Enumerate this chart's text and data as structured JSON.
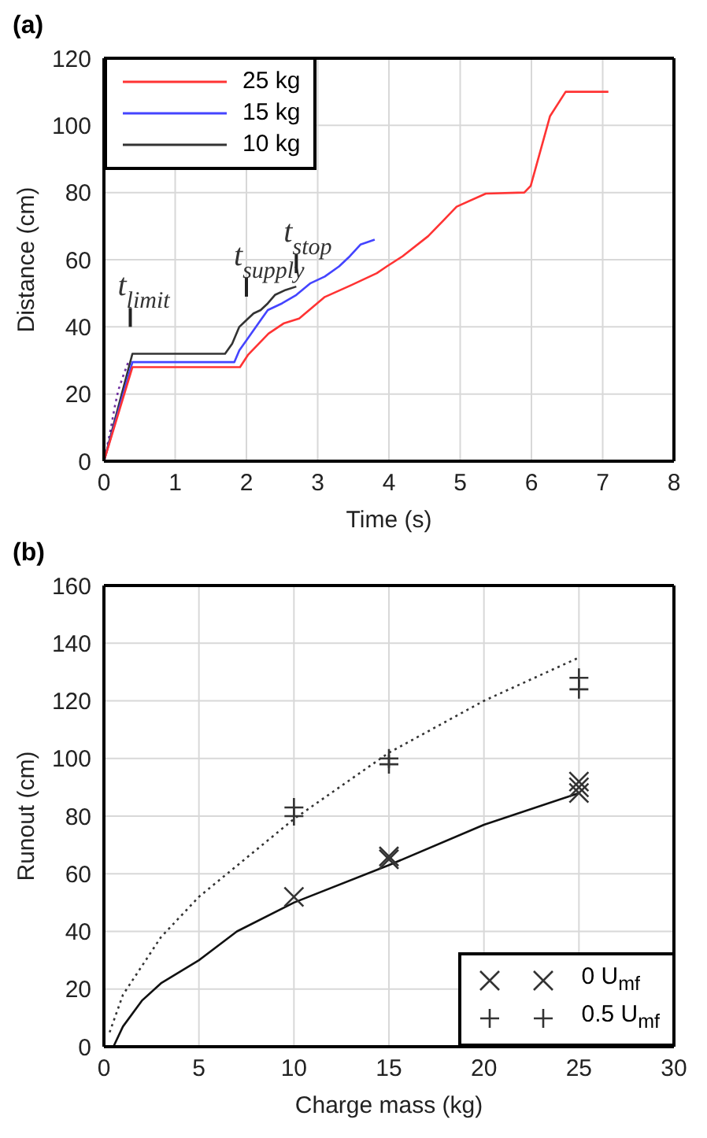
{
  "chart_data": [
    {
      "type": "line",
      "title": "(a)",
      "xlabel": "Time (s)",
      "ylabel": "Distance (cm)",
      "xlim": [
        0,
        8
      ],
      "xticks": [
        0,
        1,
        2,
        3,
        4,
        5,
        6,
        7,
        8
      ],
      "ylim": [
        0,
        120
      ],
      "yticks": [
        0,
        20,
        40,
        60,
        80,
        100,
        120
      ],
      "grid": true,
      "legend": "top left",
      "marker": "none",
      "line_style": "solid",
      "series": [
        {
          "name": "25 kg",
          "color": "#ff3333",
          "x": [
            0,
            0.4,
            1.91,
            2.02,
            2.31,
            2.52,
            2.74,
            3.1,
            3.47,
            3.83,
            3.97,
            4.19,
            4.55,
            4.77,
            4.95,
            5.36,
            5.9,
            5.99,
            6.26,
            6.48,
            7.08
          ],
          "values": [
            0,
            28,
            28,
            31.6,
            38,
            41,
            42.5,
            48.9,
            52.4,
            56,
            58,
            61,
            67,
            71.8,
            75.8,
            79.7,
            80,
            82,
            102.7,
            110,
            110
          ]
        },
        {
          "name": "15 kg",
          "color": "#4444ff",
          "x": [
            0,
            0.4,
            1.83,
            1.9,
            2.0,
            2.2,
            2.3,
            2.5,
            2.7,
            2.9,
            3.1,
            3.3,
            3.45,
            3.6,
            3.8
          ],
          "values": [
            0,
            29.5,
            29.5,
            33,
            36,
            42,
            45,
            47,
            49.5,
            53,
            55,
            58,
            61,
            64.5,
            66
          ]
        },
        {
          "name": "10 kg",
          "color": "#333333",
          "x": [
            0,
            0.4,
            1.7,
            1.8,
            1.9,
            2.0,
            2.1,
            2.2,
            2.3,
            2.4,
            2.55,
            2.7
          ],
          "values": [
            0,
            32,
            32,
            35,
            40,
            42,
            44,
            45,
            47,
            49.5,
            51,
            52
          ]
        },
        {
          "color": "#7030a0",
          "line_style": "dotted",
          "x": [
            0.05,
            0.1,
            0.15,
            0.2,
            0.28,
            0.35
          ],
          "values": [
            5,
            10,
            16,
            21,
            26,
            30
          ]
        }
      ],
      "annotations": [
        "t$_{limit}$",
        "t$_{supply}$",
        "t$_{stop}$"
      ]
    },
    {
      "type": "scatter",
      "title": "(b)",
      "xlabel": "Charge mass (kg)",
      "ylabel": "Runout (cm)",
      "xlim": [
        0,
        30
      ],
      "xticks": [
        0,
        5,
        10,
        15,
        20,
        25,
        30
      ],
      "ylim": [
        0,
        160
      ],
      "yticks": [
        0,
        20,
        40,
        60,
        80,
        100,
        120,
        140,
        160
      ],
      "grid": true,
      "legend": "bottom right",
      "series": [
        {
          "name": "0 U$_{mf}$",
          "color": "#333333",
          "marker": "x",
          "x": [
            10,
            15,
            15,
            25,
            25,
            25
          ],
          "values": [
            52,
            65,
            66,
            88,
            90,
            92
          ]
        },
        {
          "name": "0.5 U$_{mf}$",
          "color": "#333333",
          "marker": "cross",
          "x": [
            10,
            10,
            15,
            15,
            25,
            25
          ],
          "values": [
            80,
            83,
            98,
            100,
            124,
            128
          ]
        },
        {
          "type": "line",
          "color": "#111111",
          "line_style": "solid",
          "x": [
            0.5,
            1,
            2,
            3,
            5,
            7,
            10,
            15,
            20,
            25
          ],
          "values": [
            0,
            7,
            16,
            22,
            30,
            40,
            50,
            63,
            77,
            88
          ]
        },
        {
          "type": "line",
          "color": "#333333",
          "line_style": "dotted",
          "x": [
            0.3,
            1,
            3,
            5,
            10,
            15,
            20,
            25
          ],
          "values": [
            5,
            18,
            38,
            52,
            79,
            102,
            120,
            135
          ]
        }
      ]
    }
  ]
}
